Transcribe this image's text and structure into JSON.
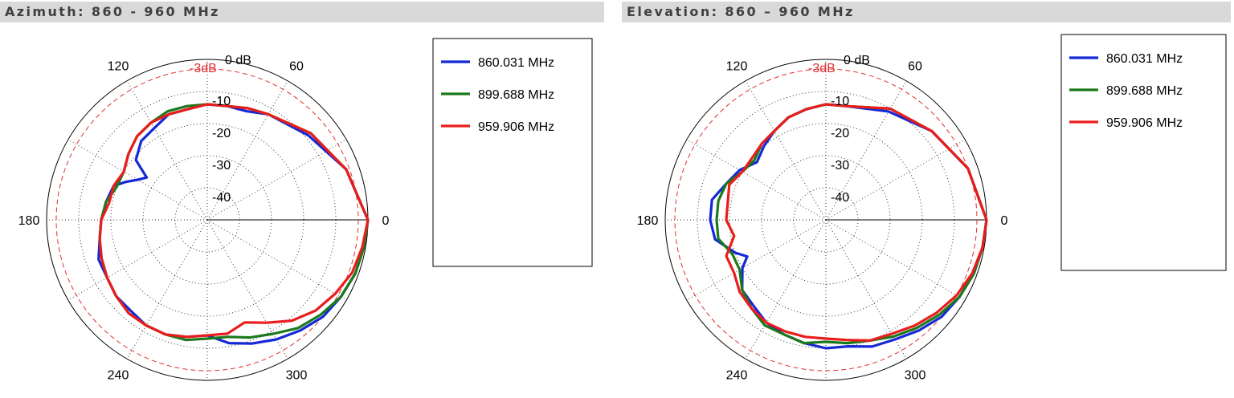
{
  "chart_data": [
    {
      "type": "polar-line",
      "title": "Azimuth: 860 - 960 MHz",
      "radial_unit": "dB",
      "radial_range": [
        -50,
        0
      ],
      "radial_ticks": [
        -10,
        -20,
        -30,
        -40
      ],
      "radial_top_label": "0 dB",
      "reference_circle": {
        "label": "-3dB",
        "value": -3,
        "color": "#e03030"
      },
      "angle_labels": [
        "0",
        "60",
        "120",
        "180",
        "240",
        "300"
      ],
      "legend_position": "right",
      "series": [
        {
          "name": "860.031 MHz",
          "color": "#1528d6",
          "points": [
            [
              0,
              0
            ],
            [
              20,
              -4
            ],
            [
              40,
              -9
            ],
            [
              60,
              -12
            ],
            [
              70,
              -14
            ],
            [
              80,
              -14
            ],
            [
              90,
              -14
            ],
            [
              100,
              -15
            ],
            [
              110,
              -15
            ],
            [
              120,
              -17
            ],
            [
              130,
              -18
            ],
            [
              140,
              -21
            ],
            [
              145,
              -27
            ],
            [
              150,
              -25
            ],
            [
              155,
              -22
            ],
            [
              160,
              -19
            ],
            [
              170,
              -18
            ],
            [
              180,
              -17
            ],
            [
              190,
              -16
            ],
            [
              200,
              -14
            ],
            [
              210,
              -14
            ],
            [
              220,
              -13
            ],
            [
              230,
              -13
            ],
            [
              240,
              -12
            ],
            [
              250,
              -12
            ],
            [
              260,
              -13
            ],
            [
              270,
              -14
            ],
            [
              280,
              -11
            ],
            [
              290,
              -9
            ],
            [
              300,
              -7
            ],
            [
              310,
              -5
            ],
            [
              320,
              -3
            ],
            [
              330,
              -2
            ],
            [
              340,
              -1
            ],
            [
              350,
              -0.5
            ],
            [
              360,
              0
            ]
          ]
        },
        {
          "name": "899.688 MHz",
          "color": "#1a7a1a",
          "points": [
            [
              0,
              0
            ],
            [
              20,
              -4
            ],
            [
              40,
              -8
            ],
            [
              60,
              -12
            ],
            [
              70,
              -13
            ],
            [
              80,
              -14
            ],
            [
              90,
              -14
            ],
            [
              100,
              -14
            ],
            [
              110,
              -14
            ],
            [
              120,
              -15
            ],
            [
              130,
              -16
            ],
            [
              140,
              -18
            ],
            [
              150,
              -20
            ],
            [
              160,
              -20
            ],
            [
              170,
              -18
            ],
            [
              180,
              -17
            ],
            [
              190,
              -16
            ],
            [
              200,
              -15
            ],
            [
              210,
              -14
            ],
            [
              220,
              -13
            ],
            [
              230,
              -12
            ],
            [
              240,
              -12
            ],
            [
              250,
              -12
            ],
            [
              260,
              -12
            ],
            [
              270,
              -13
            ],
            [
              280,
              -13
            ],
            [
              290,
              -11
            ],
            [
              300,
              -9
            ],
            [
              310,
              -6
            ],
            [
              320,
              -4
            ],
            [
              330,
              -2
            ],
            [
              340,
              -1
            ],
            [
              350,
              -0.5
            ],
            [
              360,
              0
            ]
          ]
        },
        {
          "name": "959.906 MHz",
          "color": "#ea1c1c",
          "points": [
            [
              0,
              0
            ],
            [
              20,
              -4
            ],
            [
              40,
              -8
            ],
            [
              60,
              -12
            ],
            [
              70,
              -13
            ],
            [
              80,
              -14
            ],
            [
              90,
              -14
            ],
            [
              100,
              -15
            ],
            [
              110,
              -15
            ],
            [
              120,
              -15
            ],
            [
              130,
              -16
            ],
            [
              140,
              -18
            ],
            [
              150,
              -20
            ],
            [
              160,
              -19
            ],
            [
              170,
              -19
            ],
            [
              180,
              -17
            ],
            [
              190,
              -16
            ],
            [
              200,
              -15
            ],
            [
              210,
              -14
            ],
            [
              220,
              -13
            ],
            [
              230,
              -12
            ],
            [
              240,
              -12
            ],
            [
              250,
              -12
            ],
            [
              260,
              -13
            ],
            [
              270,
              -14
            ],
            [
              280,
              -14
            ],
            [
              290,
              -16
            ],
            [
              300,
              -13
            ],
            [
              310,
              -9
            ],
            [
              320,
              -6
            ],
            [
              330,
              -4
            ],
            [
              340,
              -2
            ],
            [
              350,
              -1
            ],
            [
              360,
              0
            ]
          ]
        }
      ]
    },
    {
      "type": "polar-line",
      "title": "Elevation: 860 – 960 MHz",
      "radial_unit": "dB",
      "radial_range": [
        -50,
        0
      ],
      "radial_ticks": [
        -10,
        -20,
        -30,
        -40
      ],
      "radial_top_label": "0 dB",
      "reference_circle": {
        "label": "-3dB",
        "value": -3,
        "color": "#e03030"
      },
      "angle_labels": [
        "0",
        "60",
        "120",
        "180",
        "240",
        "300"
      ],
      "legend_position": "right",
      "series": [
        {
          "name": "860.031 MHz",
          "color": "#1528d6",
          "points": [
            [
              0,
              0
            ],
            [
              20,
              -3
            ],
            [
              40,
              -7
            ],
            [
              60,
              -11
            ],
            [
              80,
              -14
            ],
            [
              90,
              -14
            ],
            [
              100,
              -15
            ],
            [
              110,
              -16
            ],
            [
              120,
              -18
            ],
            [
              130,
              -20
            ],
            [
              140,
              -22
            ],
            [
              150,
              -19
            ],
            [
              160,
              -17
            ],
            [
              170,
              -14
            ],
            [
              180,
              -14
            ],
            [
              190,
              -15
            ],
            [
              200,
              -20
            ],
            [
              205,
              -23
            ],
            [
              210,
              -20
            ],
            [
              220,
              -16
            ],
            [
              230,
              -15
            ],
            [
              240,
              -13
            ],
            [
              250,
              -12
            ],
            [
              260,
              -11
            ],
            [
              270,
              -10
            ],
            [
              280,
              -10
            ],
            [
              290,
              -8
            ],
            [
              300,
              -7
            ],
            [
              310,
              -5
            ],
            [
              320,
              -3
            ],
            [
              330,
              -2
            ],
            [
              340,
              -1
            ],
            [
              350,
              -0.5
            ],
            [
              360,
              0
            ]
          ]
        },
        {
          "name": "899.688 MHz",
          "color": "#1a7a1a",
          "points": [
            [
              0,
              0
            ],
            [
              20,
              -3
            ],
            [
              40,
              -7
            ],
            [
              60,
              -10
            ],
            [
              80,
              -14
            ],
            [
              90,
              -14
            ],
            [
              100,
              -15
            ],
            [
              110,
              -16
            ],
            [
              120,
              -18
            ],
            [
              130,
              -19
            ],
            [
              140,
              -21
            ],
            [
              150,
              -20
            ],
            [
              160,
              -17
            ],
            [
              170,
              -16
            ],
            [
              180,
              -16
            ],
            [
              190,
              -16
            ],
            [
              200,
              -19
            ],
            [
              210,
              -19
            ],
            [
              220,
              -16
            ],
            [
              230,
              -14
            ],
            [
              240,
              -12
            ],
            [
              250,
              -12
            ],
            [
              260,
              -11
            ],
            [
              270,
              -12
            ],
            [
              280,
              -11
            ],
            [
              290,
              -10
            ],
            [
              300,
              -8
            ],
            [
              310,
              -6
            ],
            [
              320,
              -4
            ],
            [
              330,
              -2
            ],
            [
              340,
              -1
            ],
            [
              350,
              -0.5
            ],
            [
              360,
              0
            ]
          ]
        },
        {
          "name": "959.906 MHz",
          "color": "#ea1c1c",
          "points": [
            [
              0,
              0
            ],
            [
              20,
              -3
            ],
            [
              40,
              -7
            ],
            [
              60,
              -10
            ],
            [
              80,
              -14
            ],
            [
              90,
              -14
            ],
            [
              100,
              -15
            ],
            [
              110,
              -16
            ],
            [
              120,
              -18
            ],
            [
              130,
              -19
            ],
            [
              140,
              -20
            ],
            [
              150,
              -20
            ],
            [
              160,
              -18
            ],
            [
              170,
              -19
            ],
            [
              180,
              -19
            ],
            [
              190,
              -21
            ],
            [
              200,
              -17
            ],
            [
              210,
              -17
            ],
            [
              220,
              -15
            ],
            [
              230,
              -14
            ],
            [
              240,
              -13
            ],
            [
              250,
              -13
            ],
            [
              260,
              -13
            ],
            [
              270,
              -13
            ],
            [
              280,
              -12
            ],
            [
              290,
              -10
            ],
            [
              300,
              -9
            ],
            [
              310,
              -7
            ],
            [
              320,
              -5
            ],
            [
              330,
              -3
            ],
            [
              340,
              -1.5
            ],
            [
              350,
              -0.5
            ],
            [
              360,
              0
            ]
          ]
        }
      ]
    }
  ]
}
